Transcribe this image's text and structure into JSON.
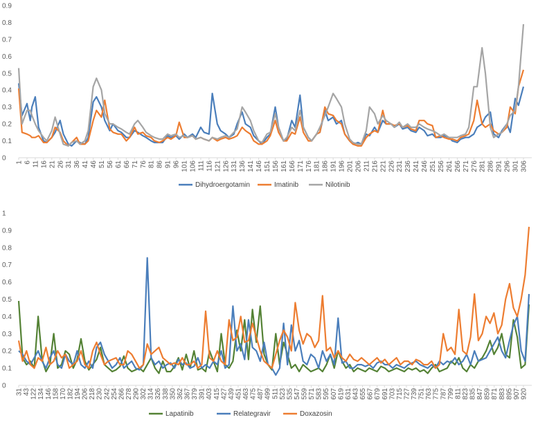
{
  "chart_data": [
    {
      "type": "line",
      "ylim": [
        0,
        0.9
      ],
      "y_ticks": [
        "0",
        "0.1",
        "0.2",
        "0.3",
        "0.4",
        "0.5",
        "0.6",
        "0.7",
        "0.8",
        "0.9"
      ],
      "x_ticks": [
        "1",
        "6",
        "11",
        "16",
        "21",
        "26",
        "31",
        "36",
        "41",
        "46",
        "51",
        "56",
        "61",
        "66",
        "71",
        "76",
        "81",
        "86",
        "91",
        "96",
        "101",
        "106",
        "111",
        "116",
        "121",
        "126",
        "131",
        "136",
        "141",
        "146",
        "151",
        "156",
        "161",
        "166",
        "171",
        "176",
        "181",
        "186",
        "191",
        "196",
        "201",
        "206",
        "211",
        "216",
        "221",
        "226",
        "231",
        "236",
        "241",
        "246",
        "251",
        "256",
        "261",
        "266",
        "271",
        "276",
        "281",
        "286",
        "291",
        "296",
        "301",
        "306"
      ],
      "x": [
        1,
        3,
        6,
        8,
        9,
        11,
        13,
        16,
        18,
        21,
        23,
        26,
        28,
        31,
        33,
        36,
        38,
        41,
        43,
        46,
        48,
        51,
        53,
        56,
        58,
        61,
        63,
        66,
        68,
        71,
        73,
        76,
        78,
        81,
        83,
        86,
        88,
        91,
        93,
        96,
        98,
        101,
        103,
        106,
        108,
        111,
        113,
        116,
        118,
        121,
        123,
        126,
        128,
        131,
        133,
        136,
        138,
        141,
        143,
        146,
        148,
        151,
        153,
        156,
        158,
        161,
        163,
        166,
        168,
        171,
        173,
        176,
        178,
        181,
        183,
        186,
        188,
        191,
        193,
        196,
        198,
        201,
        203,
        206,
        208,
        211,
        213,
        216,
        218,
        221,
        223,
        226,
        228,
        231,
        233,
        236,
        238,
        241,
        243,
        246,
        248,
        251,
        253,
        256,
        258,
        261,
        263,
        266,
        268,
        271,
        273,
        276,
        278,
        281,
        283,
        286,
        288,
        291,
        293,
        296,
        298,
        301,
        303,
        306
      ],
      "legend_position": "bottom",
      "grid": false,
      "series": [
        {
          "name": "Dihydroergotamin",
          "color": "#4a7ebb",
          "values": [
            0.44,
            0.25,
            0.32,
            0.22,
            0.3,
            0.36,
            0.18,
            0.1,
            0.09,
            0.12,
            0.15,
            0.22,
            0.14,
            0.08,
            0.07,
            0.1,
            0.09,
            0.08,
            0.12,
            0.33,
            0.36,
            0.3,
            0.22,
            0.16,
            0.2,
            0.16,
            0.15,
            0.12,
            0.12,
            0.16,
            0.15,
            0.13,
            0.12,
            0.1,
            0.09,
            0.09,
            0.09,
            0.13,
            0.12,
            0.13,
            0.11,
            0.14,
            0.12,
            0.14,
            0.12,
            0.18,
            0.15,
            0.14,
            0.38,
            0.2,
            0.16,
            0.14,
            0.12,
            0.14,
            0.2,
            0.27,
            0.2,
            0.18,
            0.13,
            0.1,
            0.08,
            0.12,
            0.14,
            0.3,
            0.18,
            0.1,
            0.11,
            0.22,
            0.18,
            0.37,
            0.18,
            0.12,
            0.1,
            0.14,
            0.15,
            0.28,
            0.22,
            0.24,
            0.2,
            0.22,
            0.14,
            0.1,
            0.08,
            0.09,
            0.08,
            0.14,
            0.13,
            0.18,
            0.15,
            0.22,
            0.2,
            0.2,
            0.18,
            0.2,
            0.17,
            0.18,
            0.16,
            0.15,
            0.18,
            0.16,
            0.13,
            0.14,
            0.12,
            0.12,
            0.13,
            0.12,
            0.1,
            0.09,
            0.11,
            0.12,
            0.12,
            0.14,
            0.18,
            0.2,
            0.24,
            0.27,
            0.14,
            0.12,
            0.16,
            0.2,
            0.15,
            0.35,
            0.31,
            0.42
          ]
        },
        {
          "name": "Imatinib",
          "color": "#ed7d31",
          "values": [
            0.41,
            0.15,
            0.14,
            0.13,
            0.12,
            0.12,
            0.13,
            0.09,
            0.09,
            0.12,
            0.18,
            0.15,
            0.1,
            0.07,
            0.09,
            0.12,
            0.08,
            0.08,
            0.1,
            0.22,
            0.28,
            0.24,
            0.34,
            0.17,
            0.15,
            0.14,
            0.14,
            0.1,
            0.12,
            0.18,
            0.14,
            0.15,
            0.13,
            0.12,
            0.1,
            0.09,
            0.1,
            0.12,
            0.11,
            0.13,
            0.21,
            0.12,
            0.12,
            0.13,
            0.11,
            0.12,
            0.11,
            0.1,
            0.12,
            0.1,
            0.11,
            0.12,
            0.11,
            0.12,
            0.13,
            0.18,
            0.16,
            0.14,
            0.1,
            0.08,
            0.08,
            0.1,
            0.13,
            0.22,
            0.15,
            0.1,
            0.1,
            0.15,
            0.14,
            0.24,
            0.15,
            0.1,
            0.1,
            0.14,
            0.15,
            0.3,
            0.26,
            0.25,
            0.22,
            0.2,
            0.14,
            0.1,
            0.08,
            0.07,
            0.07,
            0.12,
            0.14,
            0.16,
            0.15,
            0.28,
            0.2,
            0.2,
            0.19,
            0.2,
            0.18,
            0.19,
            0.17,
            0.16,
            0.22,
            0.22,
            0.2,
            0.19,
            0.12,
            0.13,
            0.12,
            0.11,
            0.11,
            0.1,
            0.12,
            0.13,
            0.14,
            0.22,
            0.34,
            0.2,
            0.18,
            0.2,
            0.16,
            0.14,
            0.15,
            0.18,
            0.3,
            0.26,
            0.42,
            0.52
          ]
        },
        {
          "name": "Nilotinib",
          "color": "#a5a5a5",
          "values": [
            0.53,
            0.2,
            0.28,
            0.28,
            0.25,
            0.2,
            0.16,
            0.12,
            0.1,
            0.16,
            0.24,
            0.14,
            0.08,
            0.07,
            0.09,
            0.1,
            0.08,
            0.1,
            0.16,
            0.42,
            0.47,
            0.4,
            0.26,
            0.2,
            0.2,
            0.18,
            0.17,
            0.15,
            0.14,
            0.2,
            0.22,
            0.18,
            0.15,
            0.13,
            0.12,
            0.11,
            0.11,
            0.14,
            0.13,
            0.14,
            0.12,
            0.13,
            0.12,
            0.13,
            0.11,
            0.12,
            0.11,
            0.1,
            0.12,
            0.11,
            0.12,
            0.13,
            0.12,
            0.15,
            0.17,
            0.3,
            0.27,
            0.22,
            0.16,
            0.1,
            0.09,
            0.14,
            0.15,
            0.26,
            0.18,
            0.1,
            0.12,
            0.18,
            0.16,
            0.28,
            0.18,
            0.12,
            0.1,
            0.14,
            0.18,
            0.25,
            0.3,
            0.38,
            0.35,
            0.3,
            0.2,
            0.11,
            0.09,
            0.08,
            0.08,
            0.16,
            0.3,
            0.26,
            0.2,
            0.25,
            0.22,
            0.2,
            0.18,
            0.21,
            0.18,
            0.2,
            0.18,
            0.18,
            0.2,
            0.18,
            0.17,
            0.16,
            0.15,
            0.13,
            0.14,
            0.12,
            0.12,
            0.12,
            0.13,
            0.14,
            0.18,
            0.42,
            0.42,
            0.65,
            0.5,
            0.18,
            0.12,
            0.14,
            0.15,
            0.2,
            0.25,
            0.28,
            0.42,
            0.79
          ]
        }
      ]
    },
    {
      "type": "line",
      "ylim": [
        0,
        1
      ],
      "y_ticks": [
        "0",
        "0.1",
        "0.2",
        "0.3",
        "0.4",
        "0.5",
        "0.6",
        "0.7",
        "0.8",
        "0.9",
        "1"
      ],
      "x_ticks": [
        "31",
        "43",
        "122",
        "134",
        "146",
        "158",
        "170",
        "182",
        "194",
        "206",
        "218",
        "230",
        "242",
        "254",
        "266",
        "278",
        "290",
        "302",
        "314",
        "326",
        "338",
        "350",
        "362",
        "367",
        "379",
        "391",
        "403",
        "415",
        "427",
        "439",
        "451",
        "463",
        "475",
        "487",
        "499",
        "511",
        "523",
        "535",
        "547",
        "559",
        "571",
        "583",
        "595",
        "607",
        "619",
        "631",
        "643",
        "655",
        "667",
        "679",
        "691",
        "703",
        "715",
        "727",
        "739",
        "751",
        "763",
        "775",
        "787",
        "799",
        "811",
        "823",
        "835",
        "847",
        "859",
        "871",
        "883",
        "895",
        "907",
        "920"
      ],
      "legend_position": "bottom",
      "grid": false,
      "series": [
        {
          "name": "Lapatinib",
          "color": "#548235",
          "values": [
            0.49,
            0.16,
            0.12,
            0.14,
            0.1,
            0.4,
            0.15,
            0.08,
            0.12,
            0.3,
            0.1,
            0.12,
            0.2,
            0.18,
            0.1,
            0.15,
            0.27,
            0.14,
            0.09,
            0.12,
            0.15,
            0.22,
            0.12,
            0.1,
            0.08,
            0.09,
            0.11,
            0.17,
            0.1,
            0.08,
            0.09,
            0.1,
            0.08,
            0.12,
            0.16,
            0.1,
            0.07,
            0.14,
            0.08,
            0.08,
            0.11,
            0.16,
            0.09,
            0.18,
            0.1,
            0.2,
            0.09,
            0.1,
            0.08,
            0.2,
            0.14,
            0.08,
            0.3,
            0.12,
            0.1,
            0.14,
            0.32,
            0.2,
            0.38,
            0.15,
            0.44,
            0.25,
            0.46,
            0.18,
            0.12,
            0.09,
            0.3,
            0.12,
            0.25,
            0.18,
            0.1,
            0.12,
            0.08,
            0.12,
            0.1,
            0.08,
            0.09,
            0.1,
            0.08,
            0.12,
            0.18,
            0.1,
            0.2,
            0.14,
            0.1,
            0.12,
            0.08,
            0.1,
            0.09,
            0.08,
            0.1,
            0.09,
            0.08,
            0.11,
            0.1,
            0.08,
            0.09,
            0.1,
            0.09,
            0.08,
            0.1,
            0.09,
            0.1,
            0.08,
            0.09,
            0.07,
            0.1,
            0.12,
            0.08,
            0.09,
            0.1,
            0.14,
            0.12,
            0.16,
            0.1,
            0.08,
            0.12,
            0.1,
            0.14,
            0.16,
            0.2,
            0.26,
            0.18,
            0.22,
            0.3,
            0.18,
            0.16,
            0.38,
            0.28,
            0.1,
            0.12,
            0.47
          ]
        },
        {
          "name": "Relategravir",
          "color": "#4a7ebb",
          "values": [
            0.2,
            0.18,
            0.14,
            0.12,
            0.16,
            0.2,
            0.14,
            0.1,
            0.16,
            0.2,
            0.12,
            0.1,
            0.18,
            0.14,
            0.12,
            0.2,
            0.12,
            0.1,
            0.14,
            0.1,
            0.22,
            0.25,
            0.18,
            0.14,
            0.1,
            0.12,
            0.16,
            0.1,
            0.12,
            0.14,
            0.1,
            0.09,
            0.12,
            0.74,
            0.16,
            0.12,
            0.14,
            0.1,
            0.12,
            0.13,
            0.1,
            0.15,
            0.12,
            0.13,
            0.1,
            0.11,
            0.16,
            0.1,
            0.12,
            0.1,
            0.14,
            0.12,
            0.2,
            0.1,
            0.12,
            0.46,
            0.2,
            0.24,
            0.15,
            0.38,
            0.22,
            0.2,
            0.14,
            0.25,
            0.12,
            0.1,
            0.06,
            0.1,
            0.36,
            0.12,
            0.35,
            0.2,
            0.26,
            0.14,
            0.12,
            0.18,
            0.16,
            0.1,
            0.2,
            0.14,
            0.18,
            0.12,
            0.39,
            0.13,
            0.14,
            0.1,
            0.1,
            0.12,
            0.12,
            0.11,
            0.12,
            0.1,
            0.13,
            0.14,
            0.12,
            0.12,
            0.1,
            0.12,
            0.11,
            0.1,
            0.12,
            0.13,
            0.14,
            0.12,
            0.11,
            0.1,
            0.12,
            0.1,
            0.14,
            0.12,
            0.14,
            0.13,
            0.16,
            0.12,
            0.14,
            0.18,
            0.12,
            0.2,
            0.14,
            0.15,
            0.16,
            0.2,
            0.24,
            0.28,
            0.2,
            0.16,
            0.26,
            0.35,
            0.4,
            0.2,
            0.14,
            0.53
          ]
        },
        {
          "name": "Doxazosin",
          "color": "#ed7d31",
          "values": [
            0.26,
            0.14,
            0.2,
            0.12,
            0.1,
            0.16,
            0.14,
            0.22,
            0.12,
            0.14,
            0.2,
            0.16,
            0.18,
            0.1,
            0.12,
            0.14,
            0.2,
            0.12,
            0.1,
            0.2,
            0.25,
            0.18,
            0.12,
            0.14,
            0.15,
            0.16,
            0.12,
            0.12,
            0.2,
            0.18,
            0.14,
            0.1,
            0.12,
            0.24,
            0.18,
            0.2,
            0.22,
            0.16,
            0.14,
            0.12,
            0.13,
            0.12,
            0.16,
            0.12,
            0.12,
            0.14,
            0.1,
            0.12,
            0.43,
            0.16,
            0.14,
            0.2,
            0.14,
            0.12,
            0.38,
            0.26,
            0.28,
            0.4,
            0.25,
            0.26,
            0.36,
            0.28,
            0.2,
            0.14,
            0.12,
            0.1,
            0.18,
            0.26,
            0.32,
            0.28,
            0.2,
            0.48,
            0.32,
            0.24,
            0.3,
            0.28,
            0.22,
            0.26,
            0.52,
            0.2,
            0.22,
            0.16,
            0.2,
            0.16,
            0.14,
            0.18,
            0.15,
            0.14,
            0.16,
            0.14,
            0.12,
            0.14,
            0.16,
            0.13,
            0.15,
            0.12,
            0.14,
            0.16,
            0.12,
            0.14,
            0.14,
            0.12,
            0.15,
            0.14,
            0.12,
            0.12,
            0.14,
            0.1,
            0.12,
            0.3,
            0.2,
            0.22,
            0.18,
            0.44,
            0.2,
            0.18,
            0.28,
            0.53,
            0.26,
            0.3,
            0.4,
            0.36,
            0.42,
            0.3,
            0.35,
            0.5,
            0.59,
            0.45,
            0.4,
            0.5,
            0.64,
            0.92
          ]
        }
      ]
    }
  ]
}
